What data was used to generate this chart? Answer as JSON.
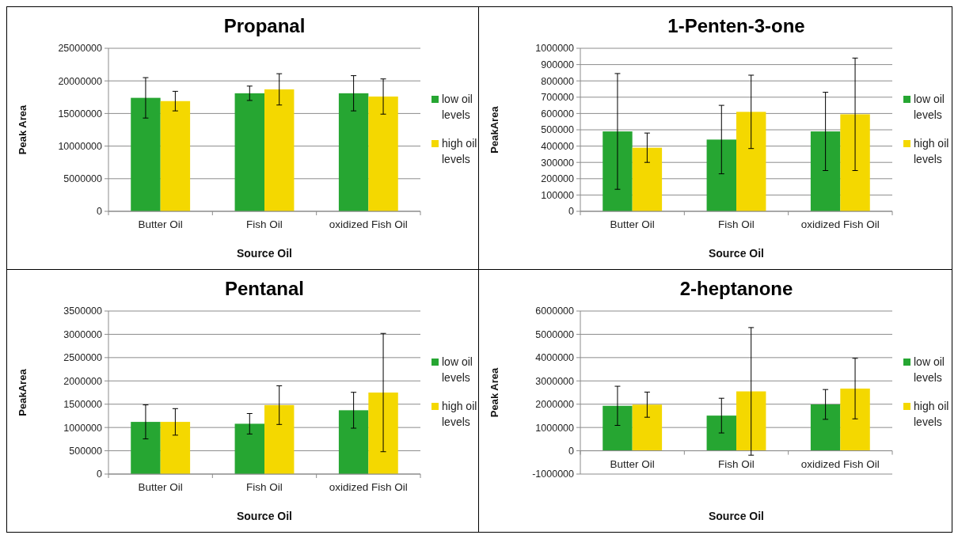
{
  "chart_data": [
    {
      "type": "bar",
      "title": "Propanal",
      "xlabel": "Source Oil",
      "ylabel": "Peak Area",
      "categories": [
        "Butter Oil",
        "Fish Oil",
        "oxidized Fish Oil"
      ],
      "series": [
        {
          "name": "low oil levels",
          "color": "#26a632",
          "values": [
            17400000,
            18100000,
            18100000
          ],
          "errors": [
            3100000,
            1100000,
            2700000
          ]
        },
        {
          "name": "high oil levels",
          "color": "#f4d800",
          "values": [
            16900000,
            18700000,
            17600000
          ],
          "errors": [
            1500000,
            2400000,
            2700000
          ]
        }
      ],
      "ylim": [
        0,
        25000000
      ],
      "yticks": [
        0,
        5000000,
        10000000,
        15000000,
        20000000,
        25000000
      ],
      "grid": "y",
      "legend": "right"
    },
    {
      "type": "bar",
      "title": "1-Penten-3-one",
      "xlabel": "Source Oil",
      "ylabel": "PeakArea",
      "categories": [
        "Butter Oil",
        "Fish Oil",
        "oxidized Fish Oil"
      ],
      "series": [
        {
          "name": "low oil levels",
          "color": "#26a632",
          "values": [
            490000,
            440000,
            490000
          ],
          "errors": [
            355000,
            210000,
            240000
          ]
        },
        {
          "name": "high oil levels",
          "color": "#f4d800",
          "values": [
            390000,
            610000,
            595000
          ],
          "errors": [
            90000,
            225000,
            345000
          ]
        }
      ],
      "ylim": [
        0,
        1000000
      ],
      "yticks": [
        0,
        100000,
        200000,
        300000,
        400000,
        500000,
        600000,
        700000,
        800000,
        900000,
        1000000
      ],
      "grid": "y",
      "legend": "right"
    },
    {
      "type": "bar",
      "title": "Pentanal",
      "xlabel": "Source Oil",
      "ylabel": "PeakArea",
      "categories": [
        "Butter Oil",
        "Fish Oil",
        "oxidized Fish Oil"
      ],
      "series": [
        {
          "name": "low oil levels",
          "color": "#26a632",
          "values": [
            1120000,
            1080000,
            1370000
          ],
          "errors": [
            365000,
            220000,
            385000
          ]
        },
        {
          "name": "high oil levels",
          "color": "#f4d800",
          "values": [
            1120000,
            1480000,
            1750000
          ],
          "errors": [
            285000,
            415000,
            1270000
          ]
        }
      ],
      "ylim": [
        0,
        3500000
      ],
      "yticks": [
        0,
        500000,
        1000000,
        1500000,
        2000000,
        2500000,
        3000000,
        3500000
      ],
      "grid": "y",
      "legend": "right"
    },
    {
      "type": "bar",
      "title": "2-heptanone",
      "xlabel": "Source Oil",
      "ylabel": "Peak Area",
      "categories": [
        "Butter Oil",
        "Fish Oil",
        "oxidized Fish Oil"
      ],
      "series": [
        {
          "name": "low oil levels",
          "color": "#26a632",
          "values": [
            1930000,
            1510000,
            1990000
          ],
          "errors": [
            840000,
            745000,
            640000
          ]
        },
        {
          "name": "high oil levels",
          "color": "#f4d800",
          "values": [
            1980000,
            2550000,
            2670000
          ],
          "errors": [
            540000,
            2740000,
            1300000
          ]
        }
      ],
      "ylim": [
        -1000000,
        6000000
      ],
      "yticks": [
        -1000000,
        0,
        1000000,
        2000000,
        3000000,
        4000000,
        5000000,
        6000000
      ],
      "grid": "y",
      "legend": "right"
    }
  ]
}
